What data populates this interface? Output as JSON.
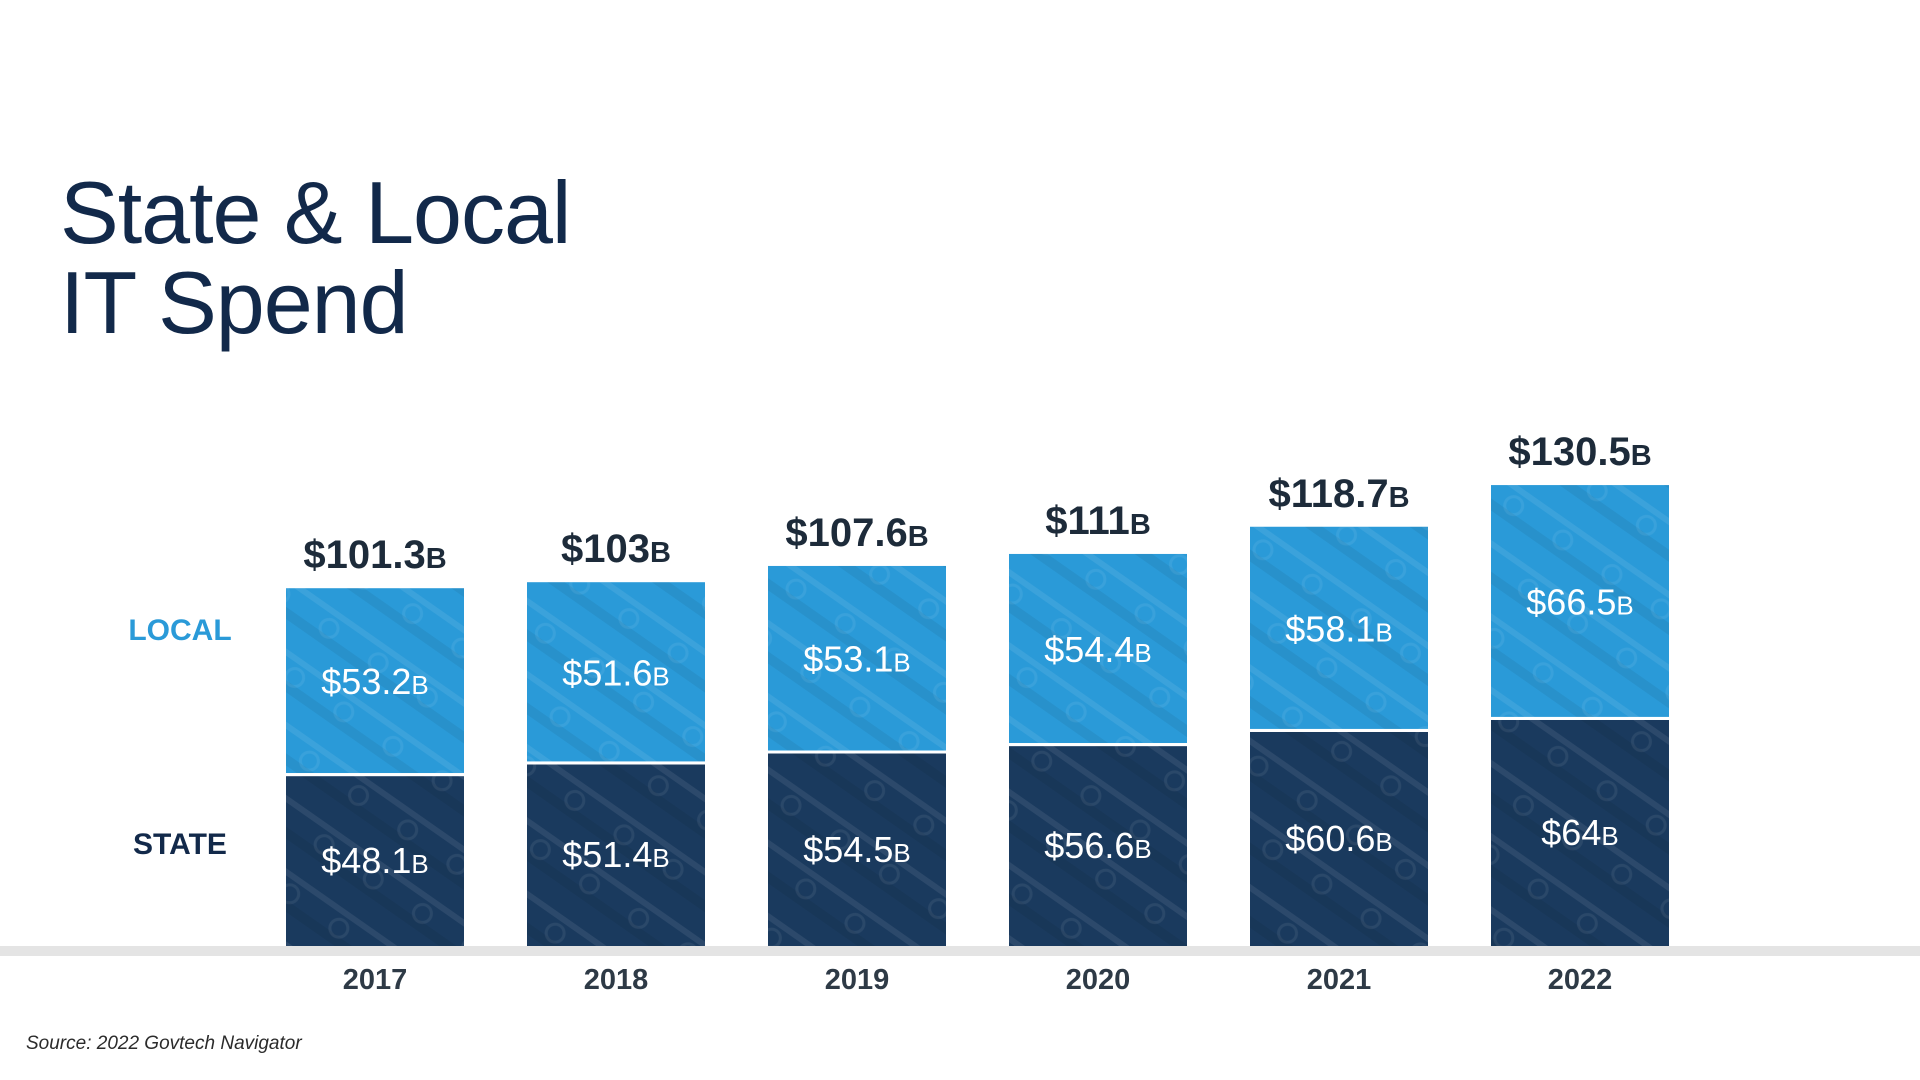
{
  "title": {
    "line1": "State & Local",
    "line2": "IT Spend"
  },
  "legend": {
    "local": "LOCAL",
    "state": "STATE"
  },
  "source": "Source: 2022 Govtech Navigator",
  "colors": {
    "local": "#2a9ad8",
    "state": "#1a3a5e",
    "title": "#12294a",
    "baseline": "#e4e4e4"
  },
  "chart_data": {
    "type": "bar",
    "stacked": true,
    "title": "State & Local IT Spend",
    "categories": [
      "2017",
      "2018",
      "2019",
      "2020",
      "2021",
      "2022"
    ],
    "series": [
      {
        "name": "STATE",
        "values": [
          48.1,
          51.4,
          54.5,
          56.6,
          60.6,
          64
        ],
        "labels": [
          "$48.1",
          "$51.4",
          "$54.5",
          "$56.6",
          "$60.6",
          "$64"
        ]
      },
      {
        "name": "LOCAL",
        "values": [
          53.2,
          51.6,
          53.1,
          54.4,
          58.1,
          66.5
        ],
        "labels": [
          "$53.2",
          "$51.6",
          "$53.1",
          "$54.4",
          "$58.1",
          "$66.5"
        ]
      }
    ],
    "totals": [
      101.3,
      103,
      107.6,
      111,
      118.7,
      130.5
    ],
    "total_labels": [
      "$101.3",
      "$103",
      "$107.6",
      "$111",
      "$118.7",
      "$130.5"
    ],
    "unit_suffix": "B",
    "ylim": [
      0,
      140
    ],
    "grid": false,
    "legend_position": "left"
  }
}
